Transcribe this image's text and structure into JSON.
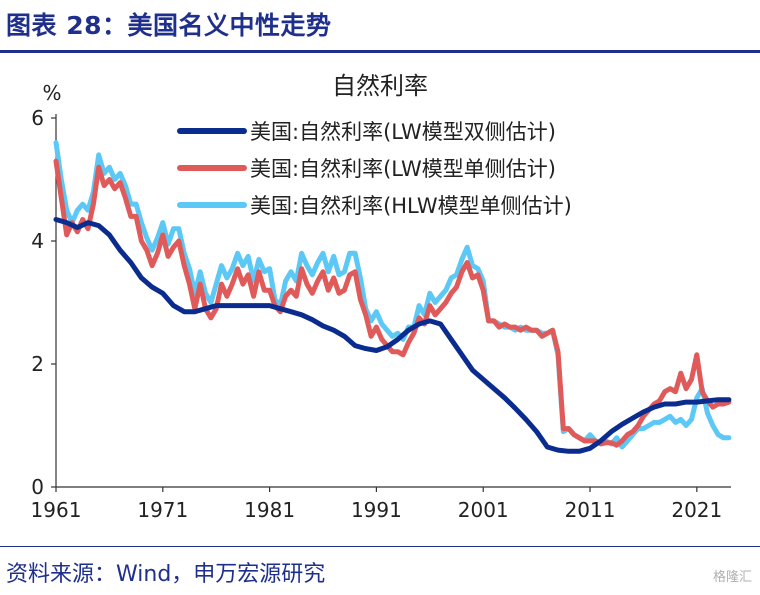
{
  "figure_title": "图表 28：美国名义中性走势",
  "source": "资料来源：Wind，申万宏源研究",
  "watermark": "格隆汇",
  "chart_data": {
    "type": "line",
    "title": "自然利率",
    "ylabel": "%",
    "xlabel": "",
    "xlim": [
      1961,
      2024.2
    ],
    "ylim": [
      0,
      6
    ],
    "x_ticks": [
      1961,
      1971,
      1981,
      1991,
      2001,
      2011,
      2021
    ],
    "y_ticks": [
      0,
      2,
      4,
      6
    ],
    "legend_position": "top-right",
    "grid": false,
    "series": [
      {
        "name": "美国:自然利率(LW模型双侧估计)",
        "color": "#0b2c8f",
        "width": 5,
        "x": [
          1961,
          1962,
          1963,
          1964,
          1965,
          1966,
          1967,
          1968,
          1969,
          1970,
          1971,
          1972,
          1973,
          1974,
          1975,
          1976,
          1977,
          1978,
          1979,
          1980,
          1981,
          1982,
          1983,
          1984,
          1985,
          1986,
          1987,
          1988,
          1989,
          1990,
          1991,
          1992,
          1993,
          1994,
          1995,
          1996,
          1997,
          1998,
          1999,
          2000,
          2001,
          2002,
          2003,
          2004,
          2005,
          2006,
          2007,
          2008,
          2009,
          2010,
          2011,
          2012,
          2013,
          2014,
          2015,
          2016,
          2017,
          2018,
          2019,
          2020,
          2021,
          2022,
          2023,
          2024
        ],
        "values": [
          4.35,
          4.3,
          4.22,
          4.3,
          4.25,
          4.1,
          3.85,
          3.65,
          3.4,
          3.25,
          3.15,
          2.95,
          2.85,
          2.85,
          2.9,
          2.95,
          2.95,
          2.95,
          2.95,
          2.95,
          2.95,
          2.9,
          2.85,
          2.8,
          2.72,
          2.62,
          2.55,
          2.45,
          2.3,
          2.25,
          2.22,
          2.28,
          2.4,
          2.55,
          2.65,
          2.7,
          2.65,
          2.4,
          2.15,
          1.9,
          1.75,
          1.6,
          1.45,
          1.28,
          1.1,
          0.9,
          0.65,
          0.6,
          0.58,
          0.58,
          0.63,
          0.75,
          0.9,
          1.02,
          1.12,
          1.22,
          1.3,
          1.35,
          1.35,
          1.38,
          1.38,
          1.4,
          1.42,
          1.42
        ]
      },
      {
        "name": "美国:自然利率(LW模型单侧估计)",
        "color": "#e05a5a",
        "width": 5,
        "x": [
          1961,
          1961.5,
          1962,
          1962.5,
          1963,
          1963.5,
          1964,
          1964.5,
          1965,
          1965.5,
          1966,
          1966.5,
          1967,
          1967.5,
          1968,
          1968.5,
          1969,
          1969.5,
          1970,
          1970.5,
          1971,
          1971.5,
          1972,
          1972.5,
          1973,
          1973.5,
          1974,
          1974.5,
          1975,
          1975.5,
          1976,
          1976.5,
          1977,
          1977.5,
          1978,
          1978.5,
          1979,
          1979.5,
          1980,
          1980.5,
          1981,
          1981.5,
          1982,
          1982.5,
          1983,
          1983.5,
          1984,
          1984.5,
          1985,
          1985.5,
          1986,
          1986.5,
          1987,
          1987.5,
          1988,
          1988.5,
          1989,
          1989.5,
          1990,
          1990.5,
          1991,
          1991.5,
          1992,
          1992.5,
          1993,
          1993.5,
          1994,
          1994.5,
          1995,
          1995.5,
          1996,
          1996.5,
          1997,
          1997.5,
          1998,
          1998.5,
          1999,
          1999.5,
          2000,
          2000.5,
          2001,
          2001.5,
          2002,
          2002.5,
          2003,
          2003.5,
          2004,
          2004.5,
          2005,
          2005.5,
          2006,
          2006.5,
          2007,
          2007.5,
          2008,
          2008.5,
          2009,
          2009.5,
          2010,
          2010.5,
          2011,
          2011.5,
          2012,
          2012.5,
          2013,
          2013.5,
          2014,
          2014.5,
          2015,
          2015.5,
          2016,
          2016.5,
          2017,
          2017.5,
          2018,
          2018.5,
          2019,
          2019.5,
          2020,
          2020.5,
          2021,
          2021.5,
          2022,
          2022.5,
          2023,
          2023.5,
          2024
        ],
        "values": [
          5.3,
          4.7,
          4.1,
          4.3,
          4.15,
          4.35,
          4.2,
          4.6,
          5.2,
          4.9,
          5.0,
          4.85,
          4.95,
          4.7,
          4.4,
          4.4,
          4.0,
          3.85,
          3.6,
          3.8,
          4.1,
          3.75,
          3.9,
          4.0,
          3.6,
          3.3,
          2.9,
          3.3,
          2.9,
          2.75,
          2.9,
          3.3,
          3.1,
          3.3,
          3.55,
          3.3,
          3.45,
          3.1,
          3.5,
          3.2,
          3.2,
          2.95,
          2.85,
          3.1,
          3.2,
          3.1,
          3.55,
          3.3,
          3.15,
          3.35,
          3.5,
          3.2,
          3.4,
          3.15,
          3.2,
          3.45,
          3.5,
          3.05,
          2.8,
          2.45,
          2.6,
          2.4,
          2.3,
          2.2,
          2.2,
          2.15,
          2.35,
          2.5,
          2.75,
          2.65,
          2.95,
          2.8,
          2.9,
          3.0,
          3.15,
          3.25,
          3.5,
          3.65,
          3.4,
          3.45,
          3.2,
          2.7,
          2.7,
          2.6,
          2.65,
          2.6,
          2.6,
          2.55,
          2.6,
          2.55,
          2.55,
          2.45,
          2.5,
          2.55,
          2.2,
          0.95,
          0.95,
          0.85,
          0.8,
          0.75,
          0.75,
          0.75,
          0.7,
          0.72,
          0.72,
          0.68,
          0.75,
          0.85,
          0.9,
          1.0,
          1.15,
          1.25,
          1.35,
          1.4,
          1.55,
          1.6,
          1.55,
          1.85,
          1.6,
          1.75,
          2.15,
          1.55,
          1.4,
          1.3,
          1.35,
          1.35,
          1.38
        ]
      },
      {
        "name": "美国:自然利率(HLW模型单侧估计)",
        "color": "#5bc8f5",
        "width": 5,
        "x": [
          1961,
          1961.5,
          1962,
          1962.5,
          1963,
          1963.5,
          1964,
          1964.5,
          1965,
          1965.5,
          1966,
          1966.5,
          1967,
          1967.5,
          1968,
          1968.5,
          1969,
          1969.5,
          1970,
          1970.5,
          1971,
          1971.5,
          1972,
          1972.5,
          1973,
          1973.5,
          1974,
          1974.5,
          1975,
          1975.5,
          1976,
          1976.5,
          1977,
          1977.5,
          1978,
          1978.5,
          1979,
          1979.5,
          1980,
          1980.5,
          1981,
          1981.5,
          1982,
          1982.5,
          1983,
          1983.5,
          1984,
          1984.5,
          1985,
          1985.5,
          1986,
          1986.5,
          1987,
          1987.5,
          1988,
          1988.5,
          1989,
          1989.5,
          1990,
          1990.5,
          1991,
          1991.5,
          1992,
          1992.5,
          1993,
          1993.5,
          1994,
          1994.5,
          1995,
          1995.5,
          1996,
          1996.5,
          1997,
          1997.5,
          1998,
          1998.5,
          1999,
          1999.5,
          2000,
          2000.5,
          2001,
          2001.5,
          2002,
          2002.5,
          2003,
          2003.5,
          2004,
          2004.5,
          2005,
          2005.5,
          2006,
          2006.5,
          2007,
          2007.5,
          2008,
          2008.5,
          2009,
          2009.5,
          2010,
          2010.5,
          2011,
          2011.5,
          2012,
          2012.5,
          2013,
          2013.5,
          2014,
          2014.5,
          2015,
          2015.5,
          2016,
          2016.5,
          2017,
          2017.5,
          2018,
          2018.5,
          2019,
          2019.5,
          2020,
          2020.5,
          2021,
          2021.5,
          2022,
          2022.5,
          2023,
          2023.5,
          2024
        ],
        "values": [
          5.6,
          5.0,
          4.5,
          4.3,
          4.5,
          4.6,
          4.5,
          4.8,
          5.4,
          5.1,
          5.2,
          5.0,
          5.1,
          4.9,
          4.6,
          4.6,
          4.3,
          4.05,
          3.85,
          4.05,
          4.3,
          3.95,
          4.2,
          4.2,
          3.8,
          3.55,
          3.15,
          3.5,
          3.15,
          3.0,
          3.3,
          3.6,
          3.4,
          3.55,
          3.8,
          3.6,
          3.75,
          3.35,
          3.7,
          3.5,
          3.55,
          3.05,
          2.95,
          3.35,
          3.5,
          3.35,
          3.8,
          3.6,
          3.45,
          3.65,
          3.8,
          3.5,
          3.75,
          3.45,
          3.5,
          3.8,
          3.8,
          3.4,
          2.9,
          2.7,
          2.85,
          2.65,
          2.55,
          2.45,
          2.5,
          2.4,
          2.6,
          2.6,
          2.95,
          2.8,
          3.15,
          3.0,
          3.1,
          3.2,
          3.4,
          3.45,
          3.7,
          3.9,
          3.6,
          3.55,
          3.35,
          2.7,
          2.7,
          2.65,
          2.6,
          2.6,
          2.55,
          2.6,
          2.55,
          2.55,
          2.55,
          2.5,
          2.5,
          2.55,
          2.15,
          0.9,
          0.95,
          0.85,
          0.8,
          0.75,
          0.85,
          0.75,
          0.72,
          0.75,
          0.7,
          0.8,
          0.65,
          0.75,
          0.85,
          0.95,
          0.95,
          1.0,
          1.05,
          1.05,
          1.1,
          1.15,
          1.05,
          1.1,
          1.0,
          1.1,
          1.45,
          1.6,
          1.2,
          1.0,
          0.85,
          0.8,
          0.8
        ]
      }
    ]
  }
}
